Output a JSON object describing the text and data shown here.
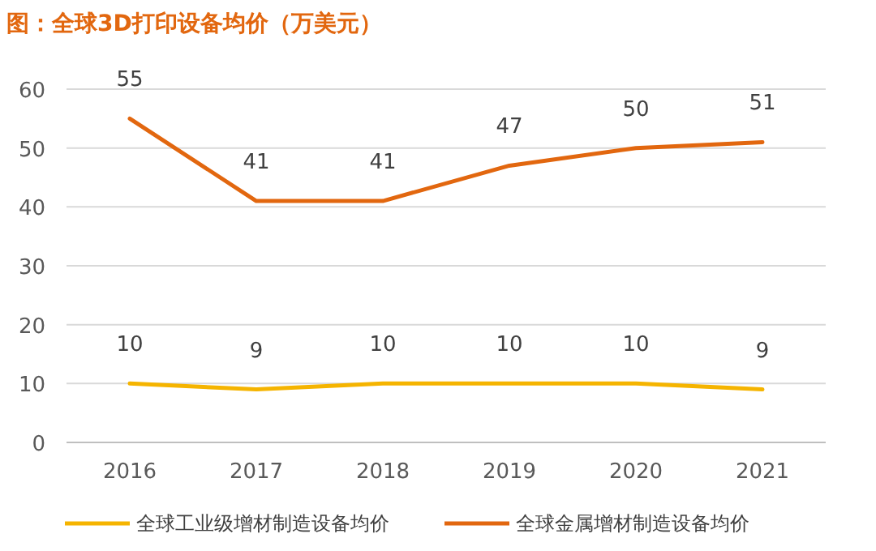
{
  "chart_data": {
    "type": "line",
    "title": "图：全球3D打印设备均价（万美元）",
    "categories": [
      "2016",
      "2017",
      "2018",
      "2019",
      "2020",
      "2021"
    ],
    "series": [
      {
        "name": "全球工业级增材制造设备均价",
        "color": "#f5b400",
        "values": [
          10,
          9,
          10,
          10,
          10,
          9
        ]
      },
      {
        "name": "全球金属增材制造设备均价",
        "color": "#e2670f",
        "values": [
          55,
          41,
          41,
          47,
          50,
          51
        ]
      }
    ],
    "ylim": [
      0,
      60
    ],
    "yticks": [
      0,
      10,
      20,
      30,
      40,
      50,
      60
    ],
    "grid": "y",
    "legend": "bottom",
    "data_labels": true,
    "marker": "none",
    "line_style": "solid"
  }
}
